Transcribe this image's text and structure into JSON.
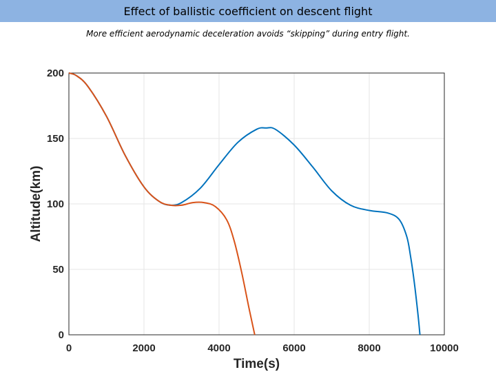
{
  "slide": {
    "title": "Effect of ballistic coefficient on descent flight",
    "subtitle": "More efficient aerodynamic deceleration avoids “skipping” during entry flight."
  },
  "colors": {
    "title_bar": "#8db3e2",
    "series_blue": "#0072bd",
    "series_orange": "#d95319",
    "grid": "#e6e6e6",
    "axis": "#262626"
  },
  "chart_data": {
    "type": "line",
    "xlabel": "Time(s)",
    "ylabel": "Altitude(km)",
    "xlim": [
      0,
      10000
    ],
    "ylim": [
      0,
      200
    ],
    "xticks": [
      0,
      2000,
      4000,
      6000,
      8000,
      10000
    ],
    "yticks": [
      0,
      50,
      100,
      150,
      200
    ],
    "grid": true,
    "series": [
      {
        "color": "#0072bd",
        "x": [
          0,
          200,
          500,
          1000,
          1500,
          2000,
          2400,
          2700,
          3000,
          3500,
          4000,
          4500,
          5000,
          5250,
          5500,
          6000,
          6500,
          7000,
          7500,
          8000,
          8500,
          8800,
          9000,
          9100,
          9200,
          9300,
          9350
        ],
        "y": [
          200,
          198,
          190,
          167,
          137,
          113,
          102,
          99,
          101,
          112,
          130,
          147,
          157,
          158,
          157,
          145,
          128,
          110,
          99,
          95,
          93,
          88,
          75,
          60,
          40,
          15,
          0
        ]
      },
      {
        "color": "#d95319",
        "x": [
          0,
          200,
          500,
          1000,
          1500,
          2000,
          2400,
          2700,
          3000,
          3300,
          3600,
          3900,
          4200,
          4400,
          4600,
          4800,
          4950
        ],
        "y": [
          200,
          198,
          190,
          167,
          137,
          113,
          102,
          99,
          99,
          101,
          101,
          98,
          88,
          72,
          48,
          20,
          0
        ]
      }
    ]
  }
}
